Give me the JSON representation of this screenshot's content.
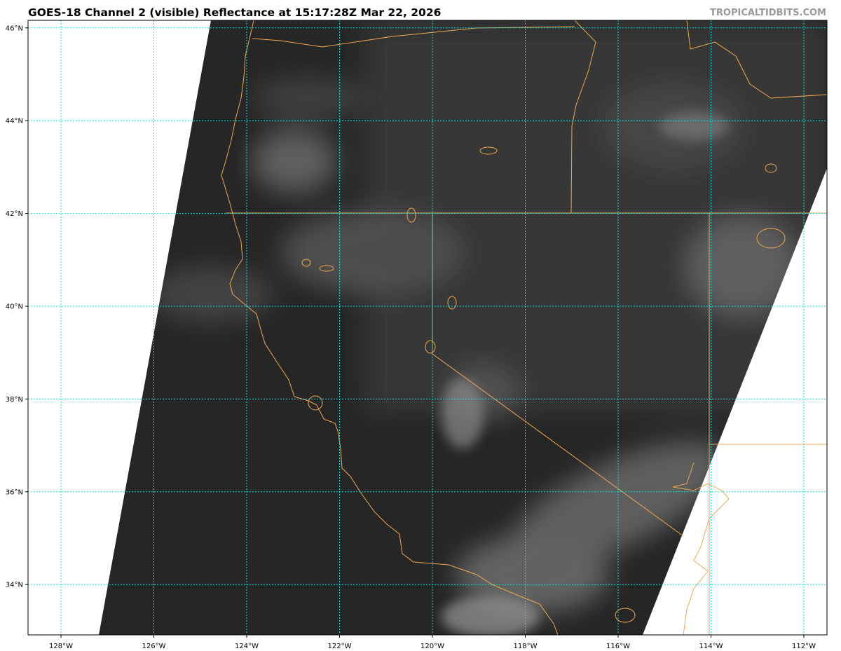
{
  "title": "GOES-18 Channel 2 (visible) Reflectance at 15:17:28Z Mar 22, 2026",
  "watermark": "TROPICALTIDBITS.COM",
  "map": {
    "lat_labels": [
      {
        "value": 46,
        "label": "46°N"
      },
      {
        "value": 44,
        "label": "44°N"
      },
      {
        "value": 42,
        "label": "42°N"
      },
      {
        "value": 40,
        "label": "40°N"
      },
      {
        "value": 38,
        "label": "38°N"
      },
      {
        "value": 36,
        "label": "36°N"
      },
      {
        "value": 34,
        "label": "34°N"
      }
    ],
    "lon_labels": [
      {
        "value": -128,
        "label": "128°W"
      },
      {
        "value": -126,
        "label": "126°W"
      },
      {
        "value": -124,
        "label": "124°W"
      },
      {
        "value": -122,
        "label": "122°W"
      },
      {
        "value": -120,
        "label": "120°W"
      },
      {
        "value": -118,
        "label": "118°W"
      },
      {
        "value": -116,
        "label": "116°W"
      },
      {
        "value": -114,
        "label": "114°W"
      },
      {
        "value": -112,
        "label": "112°W"
      }
    ],
    "colors": {
      "gridline": "#00e5e5",
      "borders": "#f0a850",
      "imagery_base": "#262626"
    }
  }
}
